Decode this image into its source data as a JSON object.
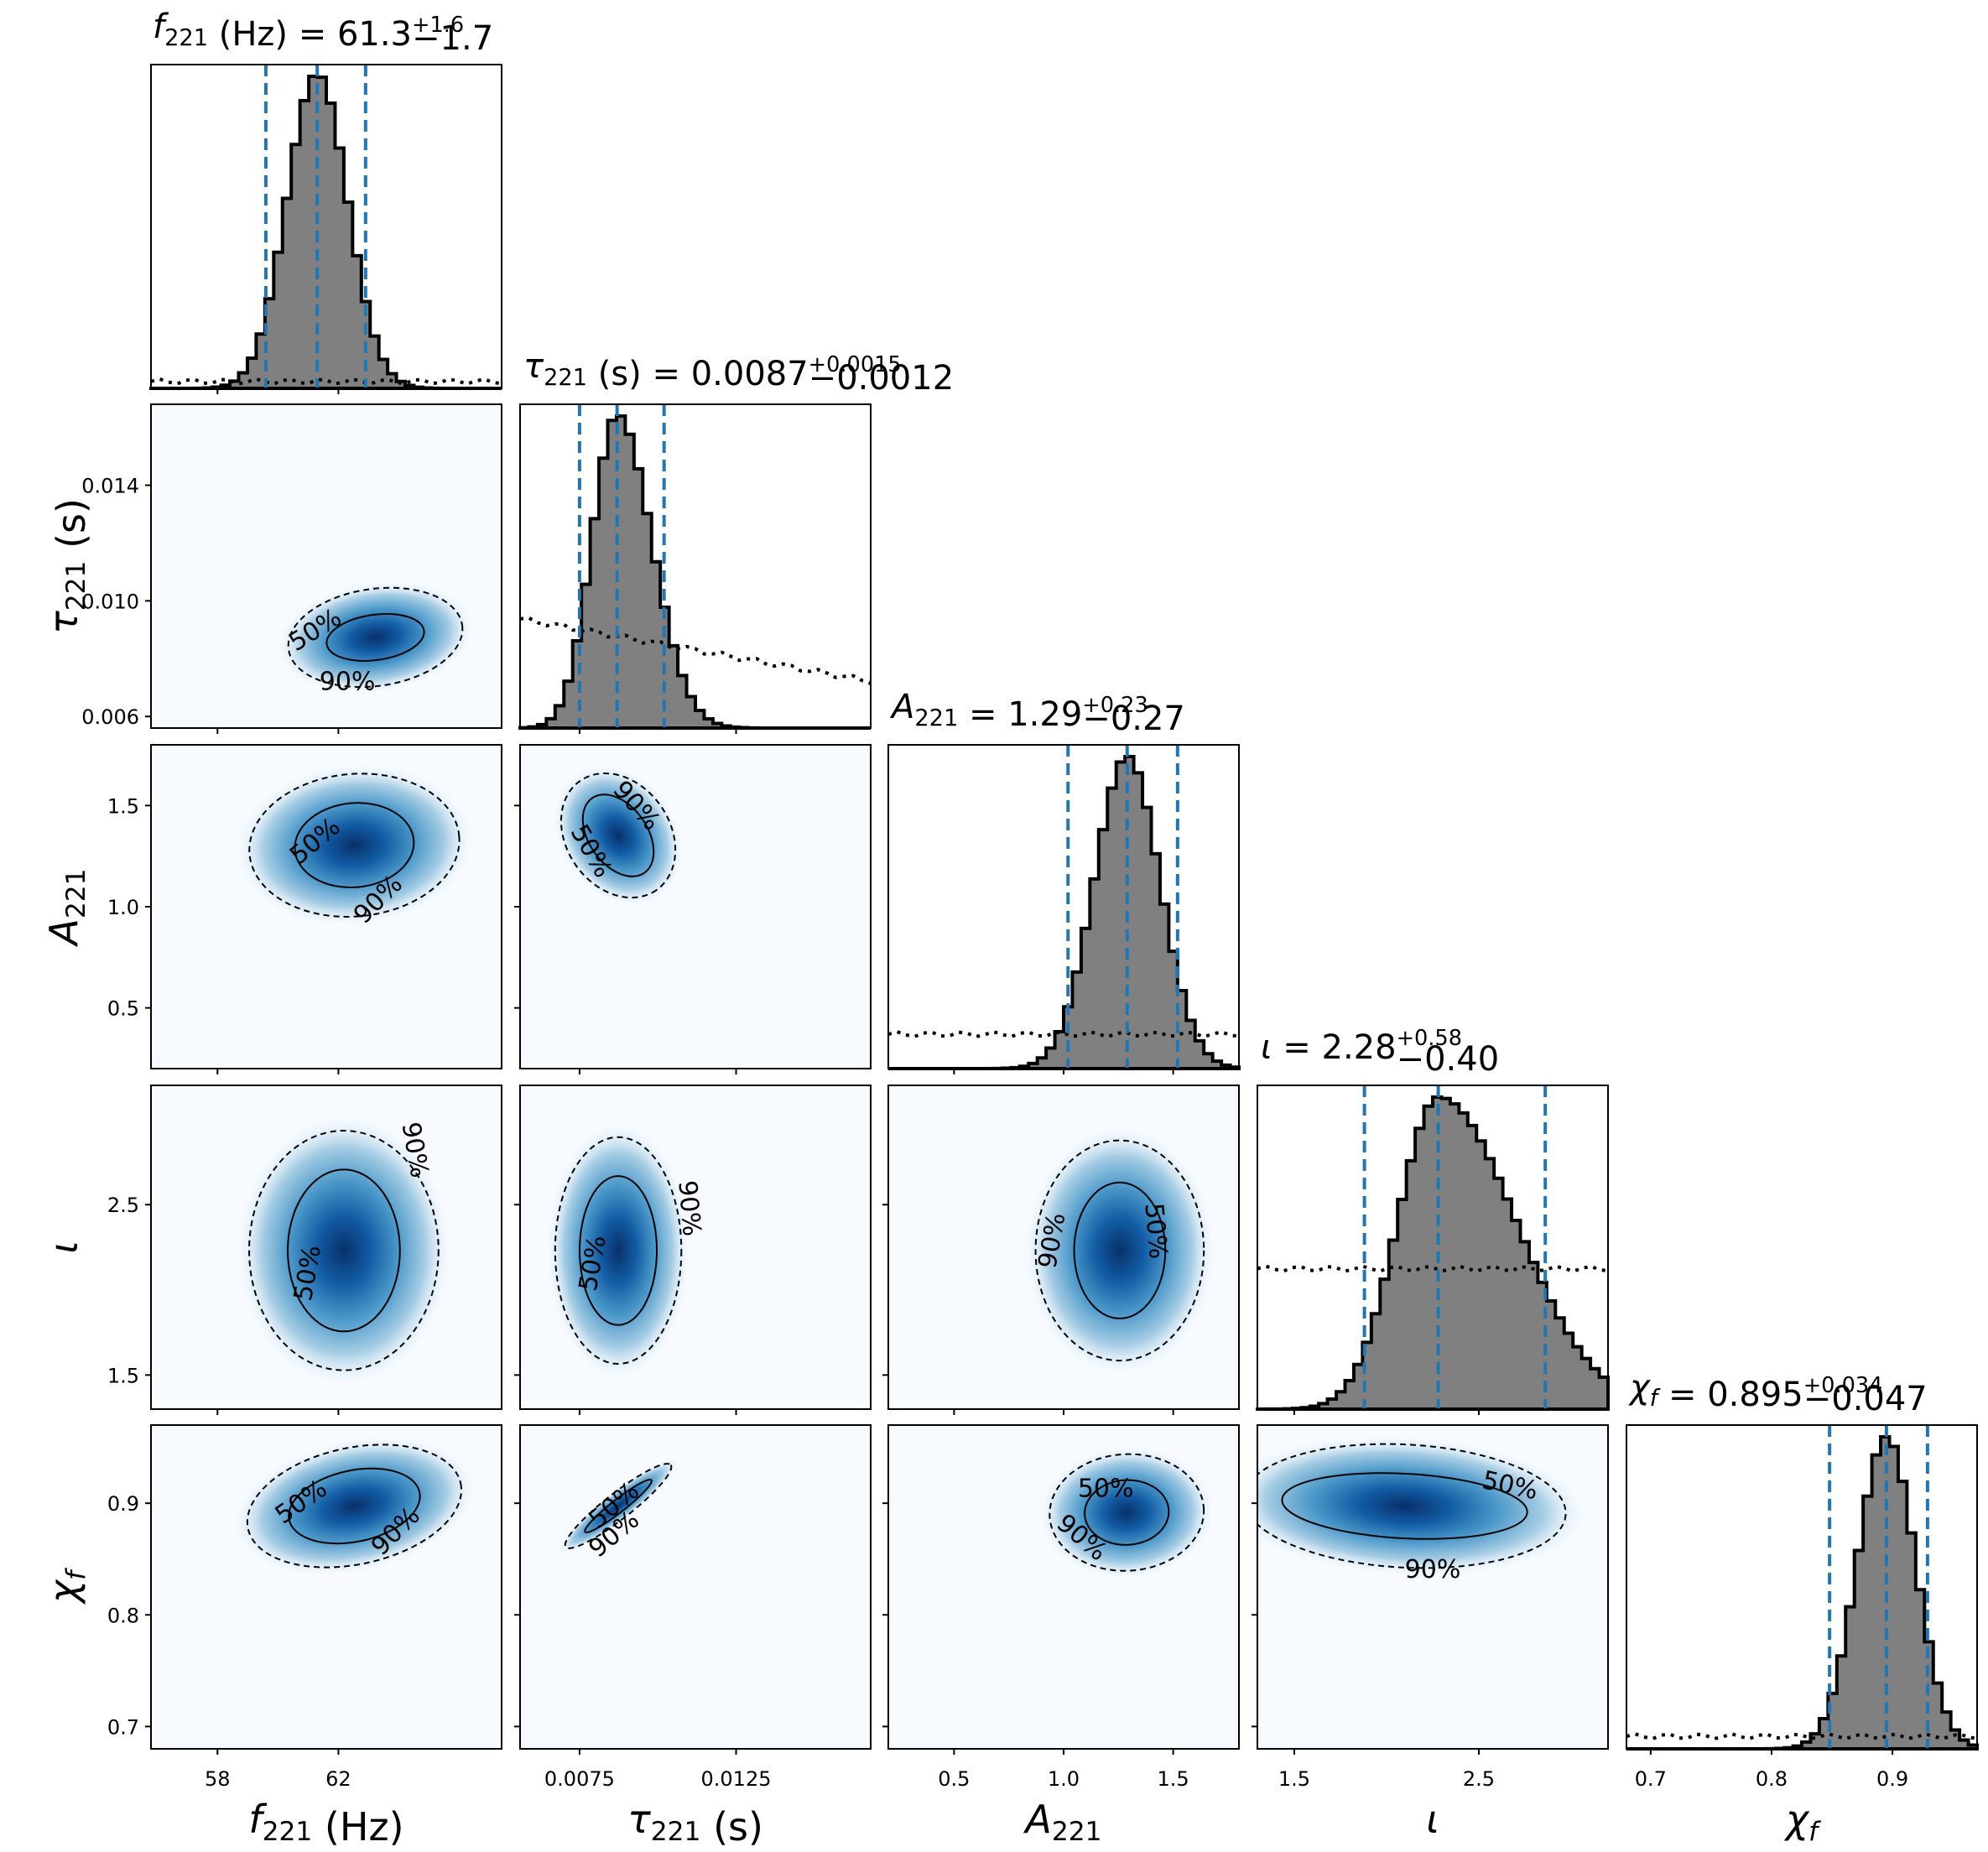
{
  "chart_data": {
    "type": "corner",
    "params": [
      {
        "name": "f221",
        "title": {
          "sym": "f",
          "sub": "221",
          "unit": " (Hz)",
          "med": "61.3",
          "plus": "+1.6",
          "minus": "−1.7"
        },
        "label": {
          "sym": "f",
          "sub": "221",
          "unit": " (Hz)"
        },
        "range": [
          55.8,
          67.4
        ],
        "ticks": [
          58,
          62
        ],
        "tick_labels": [
          "58",
          "62"
        ],
        "median": 61.3,
        "lo": 59.6,
        "hi": 62.9,
        "sigma": 1.0,
        "prior_level": 0.022
      },
      {
        "name": "tau221",
        "title": {
          "sym": "τ",
          "sub": "221",
          "unit": " (s)",
          "med": "0.0087",
          "plus": "+0.0015",
          "minus": "−0.0012"
        },
        "label": {
          "sym": "τ",
          "sub": "221",
          "unit": " (s)"
        },
        "range": [
          0.0056,
          0.0168
        ],
        "ticks": [
          0.0075,
          0.0125
        ],
        "tick_labels": [
          "0.0075",
          "0.0125"
        ],
        "ticks_y": [
          0.006,
          0.01,
          0.014
        ],
        "tick_labels_y": [
          "0.006",
          "0.010",
          "0.014"
        ],
        "median": 0.0087,
        "lo": 0.0075,
        "hi": 0.0102,
        "sigma": 0.0008,
        "skew": 0.0011,
        "prior_level": 0.35,
        "prior_slope": -0.2
      },
      {
        "name": "A221",
        "title": {
          "sym": "A",
          "sub": "221",
          "unit": "",
          "med": "1.29",
          "plus": "+0.23",
          "minus": "−0.27"
        },
        "label": {
          "sym": "A",
          "sub": "221",
          "unit": ""
        },
        "range": [
          0.2,
          1.8
        ],
        "ticks": [
          0.5,
          1.0,
          1.5
        ],
        "tick_labels": [
          "0.5",
          "1.0",
          "1.5"
        ],
        "median": 1.29,
        "lo": 1.02,
        "hi": 1.52,
        "sigma": 0.15,
        "prior_level": 0.11
      },
      {
        "name": "iota",
        "title": {
          "sym": "ι",
          "sub": "",
          "unit": "",
          "med": "2.28",
          "plus": "+0.58",
          "minus": "−0.40"
        },
        "label": {
          "sym": "ι",
          "sub": "",
          "unit": ""
        },
        "range": [
          1.3,
          3.2
        ],
        "ticks": [
          1.5,
          2.5
        ],
        "tick_labels": [
          "1.5",
          "2.5"
        ],
        "median": 2.28,
        "lo": 1.88,
        "hi": 2.86,
        "sigma": 0.35,
        "prior_level": 0.45
      },
      {
        "name": "chif",
        "title": {
          "sym": "χ",
          "sub": "f",
          "unit": "",
          "med": "0.895",
          "plus": "+0.034",
          "minus": "−0.047"
        },
        "label": {
          "sym": "χ",
          "sub": "f",
          "unit": ""
        },
        "range": [
          0.68,
          0.97
        ],
        "ticks": [
          0.7,
          0.8,
          0.9
        ],
        "tick_labels": [
          "0.7",
          "0.8",
          "0.9"
        ],
        "median": 0.895,
        "lo": 0.848,
        "hi": 0.929,
        "sigma": 0.024,
        "prior_level": 0.04
      }
    ],
    "contour_labels": [
      "50%",
      "90%"
    ],
    "grid": false
  },
  "colors": {
    "hist_fill": "#808080",
    "hist_edge": "#000000",
    "quantile": "#1f77b4",
    "kde_dark": "#08306b",
    "kde_light": "#f7fbff"
  }
}
